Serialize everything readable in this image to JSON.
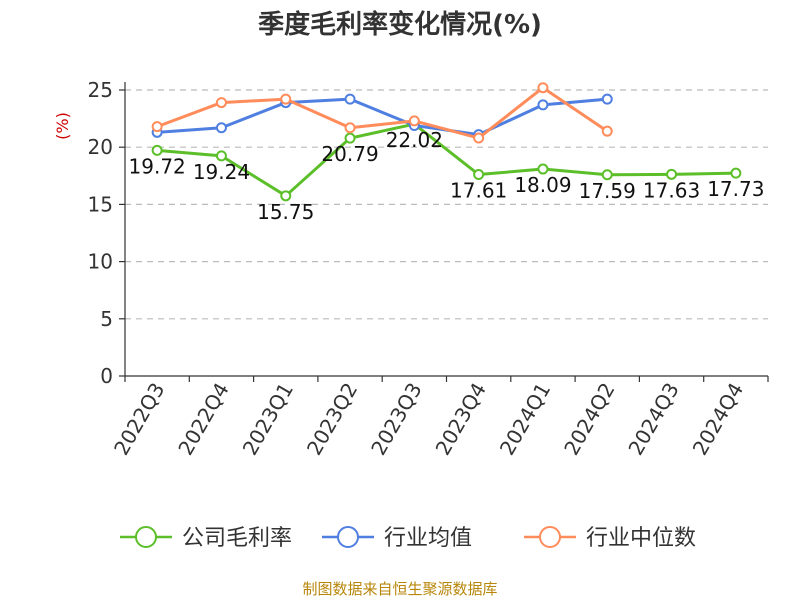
{
  "chart_data": {
    "type": "line",
    "title": "季度毛利率变化情况(%)",
    "ylabel": "(%)",
    "ylim": [
      0,
      25
    ],
    "yticks": [
      0,
      5,
      10,
      15,
      20,
      25
    ],
    "grid": true,
    "legend_position": "bottom",
    "categories": [
      "2022Q3",
      "2022Q4",
      "2023Q1",
      "2023Q2",
      "2023Q3",
      "2023Q4",
      "2024Q1",
      "2024Q2",
      "2024Q3",
      "2024Q4"
    ],
    "series": [
      {
        "name": "公司毛利率",
        "color": "#5cbf2a",
        "show_labels": true,
        "values": [
          19.72,
          19.24,
          15.75,
          20.79,
          22.02,
          17.61,
          18.09,
          17.59,
          17.63,
          17.73
        ]
      },
      {
        "name": "行业均值",
        "color": "#4f7fe0",
        "show_labels": false,
        "values": [
          21.3,
          21.7,
          23.9,
          24.2,
          21.9,
          21.1,
          23.7,
          24.2,
          null,
          null
        ]
      },
      {
        "name": "行业中位数",
        "color": "#ff8c5a",
        "show_labels": false,
        "values": [
          21.8,
          23.9,
          24.2,
          21.7,
          22.3,
          20.8,
          25.2,
          21.4,
          null,
          null
        ]
      }
    ]
  },
  "source": "制图数据来自恒生聚源数据库"
}
